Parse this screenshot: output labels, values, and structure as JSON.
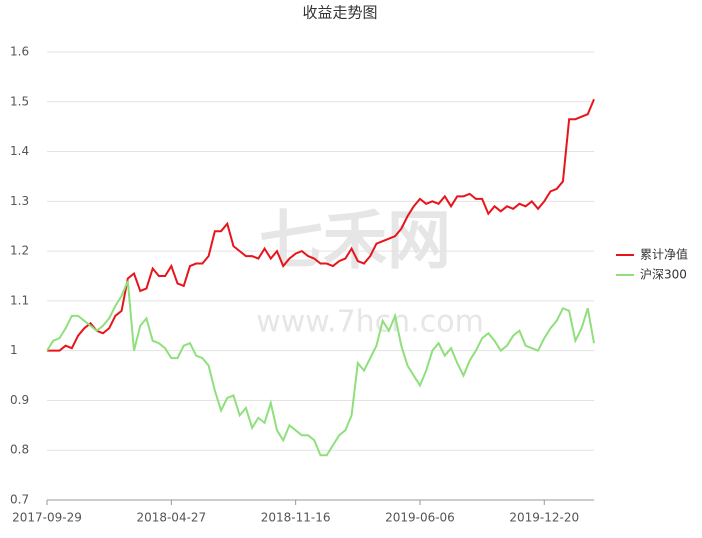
{
  "chart_data": {
    "type": "line",
    "title": "收益走势图",
    "watermark": [
      "七禾网",
      "www.7hcn.com"
    ],
    "categories": [
      "2017-09-29",
      null,
      null,
      null,
      null,
      null,
      null,
      null,
      null,
      null,
      null,
      null,
      null,
      null,
      null,
      null,
      null,
      null,
      null,
      null,
      "2018-04-27",
      null,
      null,
      null,
      null,
      null,
      null,
      null,
      null,
      null,
      null,
      null,
      null,
      null,
      null,
      null,
      null,
      null,
      null,
      null,
      "2018-11-16",
      null,
      null,
      null,
      null,
      null,
      null,
      null,
      null,
      null,
      null,
      null,
      null,
      null,
      null,
      null,
      null,
      null,
      null,
      null,
      "2019-06-06",
      null,
      null,
      null,
      null,
      null,
      null,
      null,
      null,
      null,
      null,
      null,
      null,
      null,
      null,
      null,
      null,
      null,
      null,
      null,
      "2019-12-20",
      null,
      null,
      null,
      null,
      null,
      null,
      null,
      null
    ],
    "series": [
      {
        "name": "累计净值",
        "color": "#e8141b",
        "values": [
          1.0,
          1.0,
          1.0,
          1.01,
          1.005,
          1.03,
          1.045,
          1.055,
          1.04,
          1.035,
          1.045,
          1.07,
          1.08,
          1.145,
          1.155,
          1.12,
          1.125,
          1.165,
          1.15,
          1.15,
          1.17,
          1.135,
          1.13,
          1.17,
          1.175,
          1.175,
          1.19,
          1.24,
          1.24,
          1.255,
          1.21,
          1.2,
          1.19,
          1.19,
          1.185,
          1.205,
          1.185,
          1.2,
          1.17,
          1.185,
          1.195,
          1.2,
          1.19,
          1.185,
          1.175,
          1.175,
          1.17,
          1.18,
          1.185,
          1.205,
          1.18,
          1.175,
          1.19,
          1.215,
          1.22,
          1.225,
          1.23,
          1.245,
          1.27,
          1.29,
          1.305,
          1.295,
          1.3,
          1.295,
          1.31,
          1.29,
          1.31,
          1.31,
          1.315,
          1.305,
          1.305,
          1.275,
          1.29,
          1.28,
          1.29,
          1.285,
          1.295,
          1.29,
          1.3,
          1.285,
          1.3,
          1.32,
          1.325,
          1.34,
          1.465,
          1.465,
          1.47,
          1.475,
          1.505
        ]
      },
      {
        "name": "沪深300",
        "color": "#8fe07c",
        "values": [
          1.0,
          1.02,
          1.025,
          1.045,
          1.07,
          1.07,
          1.06,
          1.05,
          1.04,
          1.05,
          1.065,
          1.09,
          1.11,
          1.14,
          1.0,
          1.05,
          1.065,
          1.02,
          1.015,
          1.005,
          0.985,
          0.985,
          1.01,
          1.015,
          0.99,
          0.985,
          0.97,
          0.92,
          0.88,
          0.905,
          0.91,
          0.87,
          0.885,
          0.845,
          0.865,
          0.855,
          0.895,
          0.84,
          0.82,
          0.85,
          0.84,
          0.83,
          0.83,
          0.82,
          0.79,
          0.79,
          0.81,
          0.83,
          0.84,
          0.87,
          0.975,
          0.96,
          0.985,
          1.01,
          1.06,
          1.04,
          1.07,
          1.01,
          0.97,
          0.95,
          0.93,
          0.96,
          1.0,
          1.015,
          0.99,
          1.005,
          0.975,
          0.95,
          0.98,
          1.0,
          1.025,
          1.035,
          1.02,
          1.0,
          1.01,
          1.03,
          1.04,
          1.01,
          1.005,
          1.0,
          1.025,
          1.045,
          1.06,
          1.085,
          1.08,
          1.02,
          1.045,
          1.085,
          1.015
        ]
      }
    ],
    "ylim": [
      0.7,
      1.6
    ],
    "yticks": [
      0.7,
      0.8,
      0.9,
      1,
      1.1,
      1.2,
      1.3,
      1.4,
      1.5,
      1.6
    ],
    "grid": true,
    "legend": "right"
  }
}
